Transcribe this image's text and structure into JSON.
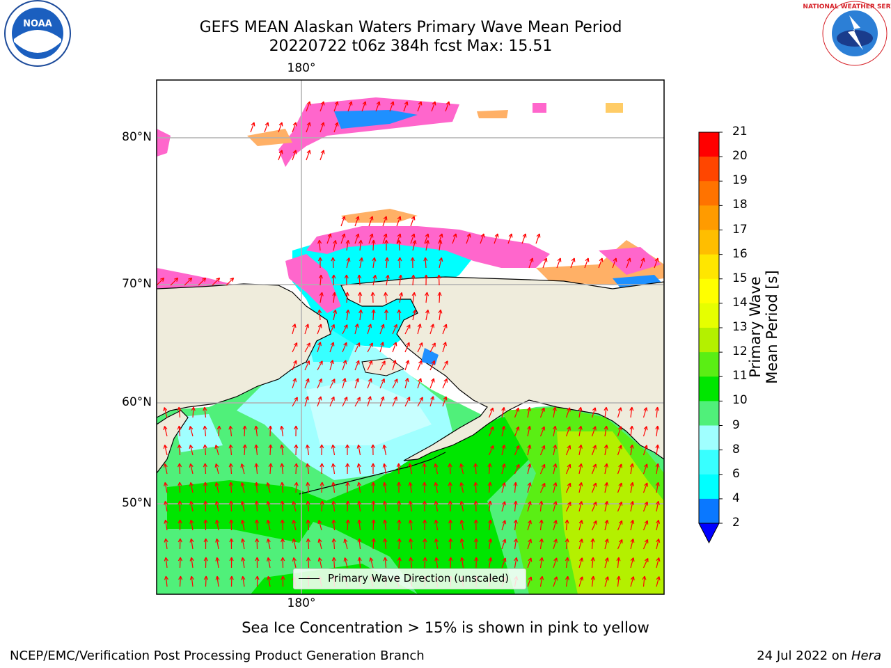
{
  "title": {
    "line1": "GEFS MEAN Alaskan Waters Primary Wave Mean Period",
    "line2": "20220722 t06z 384h fcst   Max: 15.51"
  },
  "map": {
    "lat_labels": [
      "80°N",
      "70°N",
      "60°N",
      "50°N"
    ],
    "lon_label_top": "180°",
    "lon_label_bottom": "180°",
    "legend_label": "Primary Wave Direction (unscaled)",
    "land_color": "#efecdc",
    "arrow_color": "#ff0000"
  },
  "colorbar": {
    "label": "Primary Wave Mean Period [s]",
    "ticks": [
      "2",
      "4",
      "6",
      "8",
      "9",
      "10",
      "11",
      "12",
      "13",
      "14",
      "15",
      "16",
      "17",
      "18",
      "19",
      "20",
      "21"
    ],
    "colors": [
      "#0000ff",
      "#0a78ff",
      "#00ffff",
      "#38ffff",
      "#a0ffff",
      "#50f07a",
      "#00e600",
      "#5aee14",
      "#b4f000",
      "#e6ff00",
      "#ffff00",
      "#ffe600",
      "#ffbe00",
      "#ff9b00",
      "#ff7300",
      "#ff4600",
      "#ff0000"
    ]
  },
  "ice_note": "Sea Ice Concentration > 15% is shown in pink to yellow",
  "footer": {
    "left": "NCEP/EMC/Verification Post Processing Product Generation Branch",
    "right_prefix": "24 Jul 2022 on ",
    "right_host": "Hera"
  },
  "logos": {
    "noaa": "NOAA",
    "nws": "NATIONAL WEATHER SERVICE"
  }
}
